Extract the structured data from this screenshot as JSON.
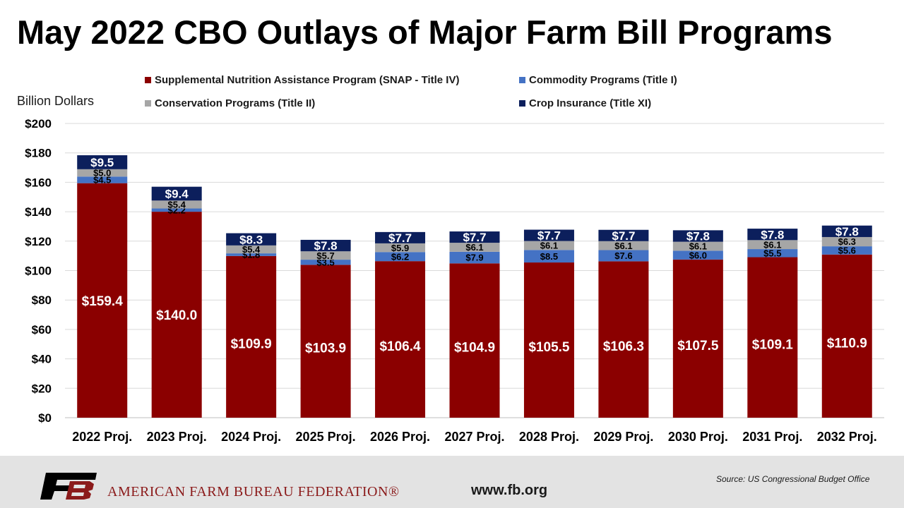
{
  "header": {
    "title": "May 2022 CBO Outlays of Major Farm Bill Programs",
    "ylabel": "Billion Dollars"
  },
  "legend": {
    "items": [
      {
        "label": "Supplemental Nutrition Assistance Program (SNAP - Title IV)",
        "color": "#8b0000"
      },
      {
        "label": "Commodity Programs (Title I)",
        "color": "#4472c4"
      },
      {
        "label": "Conservation Programs (Title II)",
        "color": "#a6a6a6"
      },
      {
        "label": "Crop Insurance (Title XI)",
        "color": "#0c1f5c"
      }
    ]
  },
  "chart_data": {
    "type": "bar",
    "stacked": true,
    "ylim": [
      0,
      200
    ],
    "yticks": [
      "$0",
      "$20",
      "$40",
      "$60",
      "$80",
      "$100",
      "$120",
      "$140",
      "$160",
      "$180",
      "$200"
    ],
    "categories": [
      "2022 Proj.",
      "2023 Proj.",
      "2024 Proj.",
      "2025 Proj.",
      "2026 Proj.",
      "2027 Proj.",
      "2028 Proj.",
      "2029 Proj.",
      "2030 Proj.",
      "2031 Proj.",
      "2032 Proj."
    ],
    "series": [
      {
        "name": "Supplemental Nutrition Assistance Program (SNAP - Title IV)",
        "color": "#8b0000",
        "values": [
          159.4,
          140.0,
          109.9,
          103.9,
          106.4,
          104.9,
          105.5,
          106.3,
          107.5,
          109.1,
          110.9
        ],
        "labels": [
          "$159.4",
          "$140.0",
          "$109.9",
          "$103.9",
          "$106.4",
          "$104.9",
          "$105.5",
          "$106.3",
          "$107.5",
          "$109.1",
          "$110.9"
        ]
      },
      {
        "name": "Commodity Programs (Title I)",
        "color": "#4472c4",
        "values": [
          4.5,
          2.2,
          1.8,
          3.5,
          6.2,
          7.9,
          8.5,
          7.6,
          6.0,
          5.5,
          5.6
        ],
        "labels": [
          "$4.5",
          "$2.2",
          "$1.8",
          "$3.5",
          "$6.2",
          "$7.9",
          "$8.5",
          "$7.6",
          "$6.0",
          "$5.5",
          "$5.6"
        ]
      },
      {
        "name": "Conservation Programs (Title II)",
        "color": "#a6a6a6",
        "values": [
          5.0,
          5.4,
          5.4,
          5.7,
          5.9,
          6.1,
          6.1,
          6.1,
          6.1,
          6.1,
          6.3
        ],
        "labels": [
          "$5.0",
          "$5.4",
          "$5.4",
          "$5.7",
          "$5.9",
          "$6.1",
          "$6.1",
          "$6.1",
          "$6.1",
          "$6.1",
          "$6.3"
        ]
      },
      {
        "name": "Crop Insurance (Title XI)",
        "color": "#0c1f5c",
        "values": [
          9.5,
          9.4,
          8.3,
          7.8,
          7.7,
          7.7,
          7.7,
          7.7,
          7.8,
          7.8,
          7.8
        ],
        "labels": [
          "$9.5",
          "$9.4",
          "$8.3",
          "$7.8",
          "$7.7",
          "$7.7",
          "$7.7",
          "$7.7",
          "$7.8",
          "$7.8",
          "$7.8"
        ]
      }
    ],
    "grid": true
  },
  "footer": {
    "org_name": "AMERICAN FARM BUREAU FEDERATION®",
    "url": "www.fb.org",
    "source": "Source:  US Congressional  Budget Office",
    "logo_icon": "fb-logo-icon"
  }
}
